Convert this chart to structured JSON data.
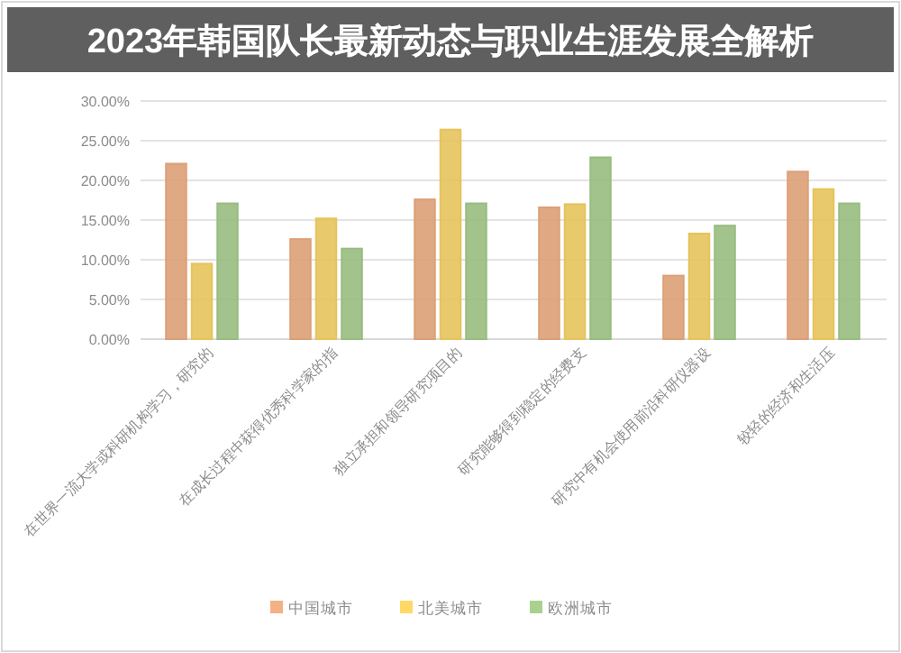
{
  "chart_data": {
    "type": "bar",
    "title": "2023年韩国队长最新动态与职业生涯发展全解析",
    "categories": [
      "在世界一流大学或科研机构学习，研究的",
      "在成长过程中获得优秀科学家的指",
      "独立承担和领导研究项目的",
      "研究能够得到稳定的经费支",
      "研究中有机会使用前沿科研仪器设",
      "较轻的经济和生活压"
    ],
    "series": [
      {
        "name": "中国城市",
        "color": "#f4b183",
        "values": [
          22.1,
          12.6,
          17.6,
          16.6,
          8.0,
          21.1
        ]
      },
      {
        "name": "北美城市",
        "color": "#ffd966",
        "values": [
          9.5,
          15.2,
          26.4,
          17.0,
          13.3,
          18.9
        ]
      },
      {
        "name": "欧洲城市",
        "color": "#a9d18e",
        "values": [
          17.1,
          11.4,
          17.1,
          22.9,
          14.3,
          17.1
        ]
      }
    ],
    "ylim": [
      0,
      30
    ],
    "yticks": [
      {
        "value": 0,
        "label": "0.00%"
      },
      {
        "value": 5,
        "label": "5.00%"
      },
      {
        "value": 10,
        "label": "10.00%"
      },
      {
        "value": 15,
        "label": "15.00%"
      },
      {
        "value": 20,
        "label": "20.00%"
      },
      {
        "value": 25,
        "label": "25.00%"
      },
      {
        "value": 30,
        "label": "30.00%"
      }
    ],
    "grid": "y",
    "legend": "bottom"
  }
}
